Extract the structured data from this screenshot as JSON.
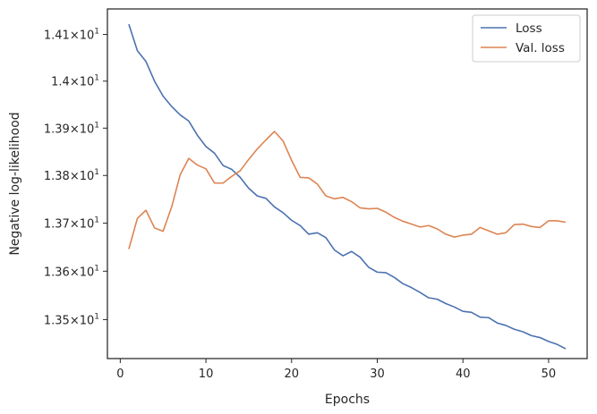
{
  "chart_data": {
    "type": "line",
    "xlabel": "Epochs",
    "ylabel": "Negative log-likelihood",
    "y_scale": "log",
    "xlim": [
      -1.5,
      54.5
    ],
    "ylim": [
      13.42,
      14.155
    ],
    "grid": false,
    "legend_position": "top-right",
    "x_ticks": [
      0,
      10,
      20,
      30,
      40,
      50
    ],
    "x_tick_labels": [
      "0",
      "10",
      "20",
      "30",
      "40",
      "50"
    ],
    "y_ticks": [
      {
        "value": 13.5,
        "mantissa": "1.35",
        "exponent": "1"
      },
      {
        "value": 13.6,
        "mantissa": "1.36",
        "exponent": "1"
      },
      {
        "value": 13.7,
        "mantissa": "1.37",
        "exponent": "1"
      },
      {
        "value": 13.8,
        "mantissa": "1.38",
        "exponent": "1"
      },
      {
        "value": 13.9,
        "mantissa": "1.39",
        "exponent": "1"
      },
      {
        "value": 14.0,
        "mantissa": "1.4",
        "exponent": "1"
      },
      {
        "value": 14.1,
        "mantissa": "1.41",
        "exponent": "1"
      }
    ],
    "x": [
      1,
      2,
      3,
      4,
      5,
      6,
      7,
      8,
      9,
      10,
      11,
      12,
      13,
      14,
      15,
      16,
      17,
      18,
      19,
      20,
      21,
      22,
      23,
      24,
      25,
      26,
      27,
      28,
      29,
      30,
      31,
      32,
      33,
      34,
      35,
      36,
      37,
      38,
      39,
      40,
      41,
      42,
      43,
      44,
      45,
      46,
      47,
      48,
      49,
      50,
      51,
      52
    ],
    "series": [
      {
        "name": "Loss",
        "color": "#4c72b0",
        "values": [
          14.122,
          14.065,
          14.042,
          14.0,
          13.968,
          13.946,
          13.928,
          13.915,
          13.885,
          13.861,
          13.847,
          13.821,
          13.813,
          13.796,
          13.773,
          13.757,
          13.752,
          13.734,
          13.722,
          13.706,
          13.695,
          13.677,
          13.68,
          13.67,
          13.644,
          13.632,
          13.641,
          13.629,
          13.608,
          13.598,
          13.597,
          13.587,
          13.574,
          13.566,
          13.556,
          13.545,
          13.542,
          13.533,
          13.526,
          13.517,
          13.515,
          13.505,
          13.504,
          13.493,
          13.488,
          13.48,
          13.475,
          13.467,
          13.463,
          13.455,
          13.449,
          13.44
        ]
      },
      {
        "name": "Val. loss",
        "color": "#dd8452",
        "values": [
          13.646,
          13.71,
          13.727,
          13.69,
          13.683,
          13.734,
          13.802,
          13.836,
          13.822,
          13.814,
          13.784,
          13.784,
          13.798,
          13.81,
          13.834,
          13.856,
          13.875,
          13.893,
          13.873,
          13.832,
          13.796,
          13.795,
          13.782,
          13.757,
          13.751,
          13.754,
          13.745,
          13.732,
          13.73,
          13.731,
          13.723,
          13.712,
          13.704,
          13.698,
          13.692,
          13.695,
          13.688,
          13.677,
          13.671,
          13.675,
          13.677,
          13.691,
          13.684,
          13.677,
          13.68,
          13.697,
          13.698,
          13.693,
          13.691,
          13.705,
          13.705,
          13.702
        ]
      }
    ]
  }
}
